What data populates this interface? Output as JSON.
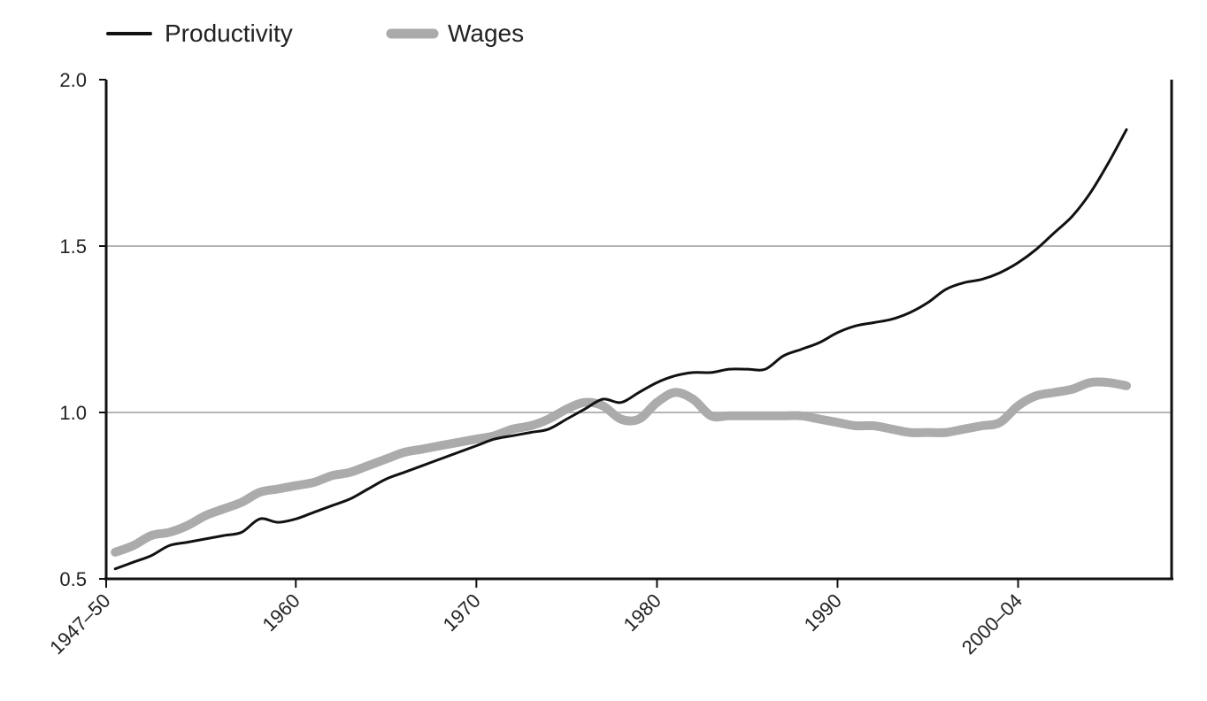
{
  "chart_data": {
    "type": "line",
    "title": "",
    "xlabel": "",
    "ylabel": "",
    "ylim": [
      0.5,
      2.0
    ],
    "xlim": [
      1947,
      2006
    ],
    "grid": {
      "horizontal": true,
      "vertical": false
    },
    "legend_position": "top-left",
    "y_ticks": [
      {
        "value": 0.5,
        "label": "0.5"
      },
      {
        "value": 1.0,
        "label": "1.0"
      },
      {
        "value": 1.5,
        "label": "1.5"
      },
      {
        "value": 2.0,
        "label": "2.0"
      }
    ],
    "x_ticks": [
      {
        "value": 1947,
        "label": "1947–50"
      },
      {
        "value": 1957.5,
        "label": "1960"
      },
      {
        "value": 1967.5,
        "label": "1970"
      },
      {
        "value": 1977.5,
        "label": "1980"
      },
      {
        "value": 1987.5,
        "label": "1990"
      },
      {
        "value": 1997.5,
        "label": "2000–04"
      }
    ],
    "series": [
      {
        "name": "Productivity",
        "color": "#111111",
        "x": [
          1947.5,
          1948.5,
          1949.5,
          1950.5,
          1951.5,
          1952.5,
          1953.5,
          1954.5,
          1955.5,
          1956.5,
          1957.5,
          1958.5,
          1959.5,
          1960.5,
          1961.5,
          1962.5,
          1963.5,
          1964.5,
          1965.5,
          1966.5,
          1967.5,
          1968.5,
          1969.5,
          1970.5,
          1971.5,
          1972.5,
          1973.5,
          1974.5,
          1975.5,
          1976.5,
          1977.5,
          1978.5,
          1979.5,
          1980.5,
          1981.5,
          1982.5,
          1983.5,
          1984.5,
          1985.5,
          1986.5,
          1987.5,
          1988.5,
          1989.5,
          1990.5,
          1991.5,
          1992.5,
          1993.5,
          1994.5,
          1995.5,
          1996.5,
          1997.5,
          1998.5,
          1999.5,
          2000.5,
          2001.5,
          2002.5,
          2003.5
        ],
        "values": [
          0.53,
          0.55,
          0.57,
          0.6,
          0.61,
          0.62,
          0.63,
          0.64,
          0.68,
          0.67,
          0.68,
          0.7,
          0.72,
          0.74,
          0.77,
          0.8,
          0.82,
          0.84,
          0.86,
          0.88,
          0.9,
          0.92,
          0.93,
          0.94,
          0.95,
          0.98,
          1.01,
          1.04,
          1.03,
          1.06,
          1.09,
          1.11,
          1.12,
          1.12,
          1.13,
          1.13,
          1.13,
          1.17,
          1.19,
          1.21,
          1.24,
          1.26,
          1.27,
          1.28,
          1.3,
          1.33,
          1.37,
          1.39,
          1.4,
          1.42,
          1.45,
          1.49,
          1.54,
          1.59,
          1.66,
          1.75,
          1.85
        ]
      },
      {
        "name": "Wages",
        "color": "#ababab",
        "x": [
          1947.5,
          1948.5,
          1949.5,
          1950.5,
          1951.5,
          1952.5,
          1953.5,
          1954.5,
          1955.5,
          1956.5,
          1957.5,
          1958.5,
          1959.5,
          1960.5,
          1961.5,
          1962.5,
          1963.5,
          1964.5,
          1965.5,
          1966.5,
          1967.5,
          1968.5,
          1969.5,
          1970.5,
          1971.5,
          1972.5,
          1973.5,
          1974.5,
          1975.5,
          1976.5,
          1977.5,
          1978.5,
          1979.5,
          1980.5,
          1981.5,
          1982.5,
          1983.5,
          1984.5,
          1985.5,
          1986.5,
          1987.5,
          1988.5,
          1989.5,
          1990.5,
          1991.5,
          1992.5,
          1993.5,
          1994.5,
          1995.5,
          1996.5,
          1997.5,
          1998.5,
          1999.5,
          2000.5,
          2001.5,
          2002.5,
          2003.5
        ],
        "values": [
          0.58,
          0.6,
          0.63,
          0.64,
          0.66,
          0.69,
          0.71,
          0.73,
          0.76,
          0.77,
          0.78,
          0.79,
          0.81,
          0.82,
          0.84,
          0.86,
          0.88,
          0.89,
          0.9,
          0.91,
          0.92,
          0.93,
          0.95,
          0.96,
          0.98,
          1.01,
          1.03,
          1.02,
          0.98,
          0.98,
          1.03,
          1.06,
          1.04,
          0.99,
          0.99,
          0.99,
          0.99,
          0.99,
          0.99,
          0.98,
          0.97,
          0.96,
          0.96,
          0.95,
          0.94,
          0.94,
          0.94,
          0.95,
          0.96,
          0.97,
          1.02,
          1.05,
          1.06,
          1.07,
          1.09,
          1.09,
          1.08
        ]
      }
    ]
  }
}
